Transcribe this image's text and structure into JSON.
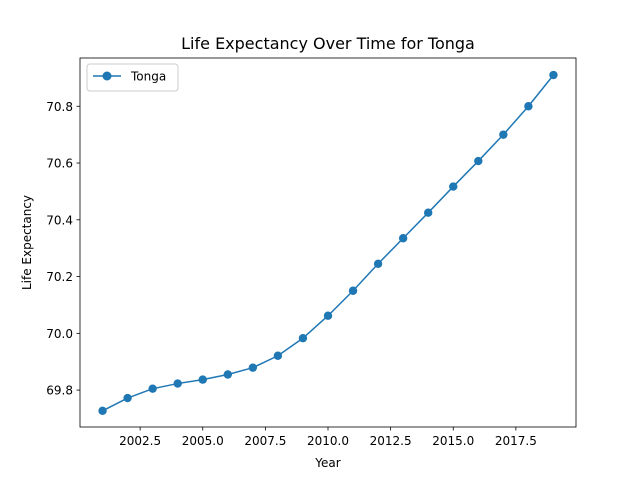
{
  "chart_data": {
    "type": "line",
    "title": "Life Expectancy Over Time for Tonga",
    "xlabel": "Year",
    "ylabel": "Life Expectancy",
    "xlim": [
      2000.1,
      2019.9
    ],
    "ylim": [
      69.67,
      70.97
    ],
    "x_ticks": [
      2002.5,
      2005.0,
      2007.5,
      2010.0,
      2012.5,
      2015.0,
      2017.5
    ],
    "x_tick_labels": [
      "2002.5",
      "2005.0",
      "2007.5",
      "2010.0",
      "2012.5",
      "2015.0",
      "2017.5"
    ],
    "y_ticks": [
      69.8,
      70.0,
      70.2,
      70.4,
      70.6,
      70.8
    ],
    "y_tick_labels": [
      "69.8",
      "70.0",
      "70.2",
      "70.4",
      "70.6",
      "70.8"
    ],
    "grid": false,
    "legend_position": "upper-left",
    "series": [
      {
        "name": "Tonga",
        "color": "#1f77b4",
        "marker": "circle",
        "x": [
          2001,
          2002,
          2003,
          2004,
          2005,
          2006,
          2007,
          2008,
          2009,
          2010,
          2011,
          2012,
          2013,
          2014,
          2015,
          2016,
          2017,
          2018,
          2019
        ],
        "values": [
          69.727,
          69.772,
          69.805,
          69.823,
          69.837,
          69.855,
          69.879,
          69.921,
          69.983,
          70.062,
          70.15,
          70.245,
          70.335,
          70.425,
          70.517,
          70.607,
          70.7,
          70.8,
          70.91
        ]
      }
    ]
  }
}
